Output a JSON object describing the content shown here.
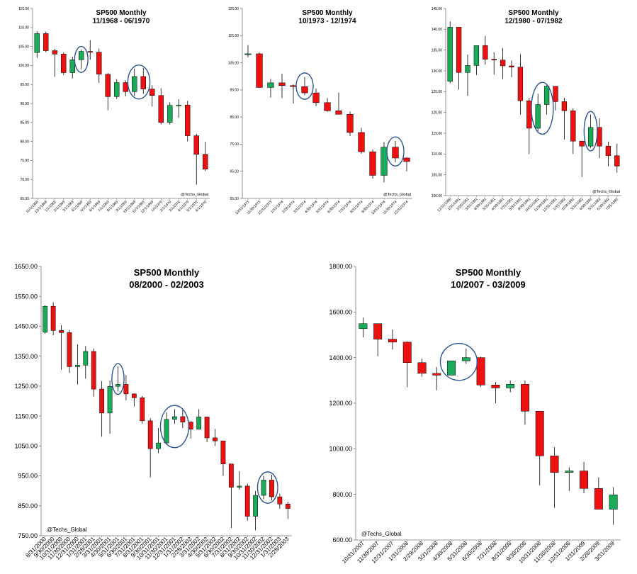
{
  "colors": {
    "up": "#1aab5a",
    "down": "#ee1111",
    "wick": "#000000",
    "circle": "#2f5597"
  },
  "chart_data": [
    {
      "type": "candlestick",
      "title": "SP500 Monthly",
      "subtitle": "11/1968 - 06/1970",
      "watermark": "@Techs_Global",
      "ylim": [
        65,
        115
      ],
      "yticks": [
        "115.00",
        "110.00",
        "105.00",
        "100.00",
        "95.00",
        "90.00",
        "85.00",
        "80.00",
        "75.00",
        "70.00",
        "65.00"
      ],
      "categories": [
        "11/1/1968",
        "12/1/1968",
        "1/1/1969",
        "2/1/1969",
        "3/1/1969",
        "4/1/1969",
        "5/1/1969",
        "6/1/1969",
        "7/1/1969",
        "8/1/1969",
        "9/1/1969",
        "10/1/1969",
        "11/1/1969",
        "12/1/1969",
        "1/1/1970",
        "2/1/1970",
        "3/1/1970",
        "4/1/1970",
        "5/1/1970",
        "6/1/1970"
      ],
      "ohlc": [
        [
          103.4,
          109.0,
          102.0,
          108.4
        ],
        [
          108.4,
          108.9,
          103.5,
          103.9
        ],
        [
          103.9,
          104.4,
          97.0,
          103.0
        ],
        [
          103.0,
          103.5,
          97.5,
          98.1
        ],
        [
          98.1,
          102.3,
          96.6,
          101.5
        ],
        [
          101.5,
          104.2,
          99.0,
          103.7
        ],
        [
          103.7,
          106.7,
          101.5,
          103.5
        ],
        [
          103.5,
          104.5,
          95.4,
          97.7
        ],
        [
          97.7,
          98.0,
          88.2,
          91.8
        ],
        [
          91.8,
          96.4,
          91.2,
          95.5
        ],
        [
          95.5,
          96.1,
          91.9,
          93.1
        ],
        [
          93.1,
          99.2,
          92.0,
          97.1
        ],
        [
          97.1,
          99.3,
          92.5,
          93.8
        ],
        [
          93.8,
          94.8,
          89.2,
          92.1
        ],
        [
          92.1,
          94.0,
          84.5,
          85.0
        ],
        [
          85.0,
          90.3,
          84.5,
          89.5
        ],
        [
          89.5,
          91.1,
          86.2,
          89.6
        ],
        [
          89.6,
          90.7,
          80.0,
          81.5
        ],
        [
          81.5,
          82.0,
          68.6,
          76.6
        ],
        [
          76.6,
          79.9,
          72.2,
          72.7
        ]
      ],
      "circles": [
        [
          5,
          5
        ],
        [
          11,
          12
        ]
      ]
    },
    {
      "type": "candlestick",
      "title": "SP500 Monthly",
      "subtitle": "10/1973 - 12/1974",
      "watermark": "@Techs_Global",
      "ylim": [
        55,
        125
      ],
      "yticks": [
        "125.00",
        "115.00",
        "105.00",
        "95.00",
        "85.00",
        "75.00",
        "65.00",
        "55.00"
      ],
      "categories": [
        "10/31/1973",
        "11/30/1973",
        "12/31/1973",
        "1/31/1974",
        "2/28/1974",
        "3/31/1974",
        "4/30/1974",
        "5/31/1974",
        "6/30/1974",
        "7/31/1974",
        "8/31/1974",
        "9/30/1974",
        "10/31/1974",
        "11/30/1974",
        "12/31/1974"
      ],
      "ohlc": [
        [
          108.3,
          111.5,
          107.0,
          108.3
        ],
        [
          108.3,
          108.8,
          95.7,
          95.9
        ],
        [
          95.9,
          99.0,
          92.2,
          97.6
        ],
        [
          97.6,
          101.0,
          92.0,
          96.6
        ],
        [
          96.6,
          97.0,
          90.0,
          96.2
        ],
        [
          96.2,
          99.8,
          93.0,
          93.9
        ],
        [
          93.9,
          95.5,
          89.0,
          90.3
        ],
        [
          90.3,
          92.0,
          86.9,
          87.3
        ],
        [
          87.3,
          94.0,
          86.0,
          86.0
        ],
        [
          86.0,
          87.0,
          78.0,
          79.3
        ],
        [
          79.3,
          81.0,
          71.5,
          72.2
        ],
        [
          72.2,
          73.0,
          62.3,
          63.5
        ],
        [
          63.5,
          75.8,
          60.9,
          73.9
        ],
        [
          73.9,
          76.2,
          68.4,
          69.9
        ],
        [
          69.9,
          70.2,
          65.0,
          68.6
        ]
      ],
      "circles": [
        [
          5,
          5
        ],
        [
          13,
          13
        ]
      ]
    },
    {
      "type": "candlestick",
      "title": "SP500 Monthly",
      "subtitle": "12/1980 - 07/1982",
      "watermark": "@Techs_Global",
      "ylim": [
        100,
        145
      ],
      "yticks": [
        "145.00",
        "140.00",
        "135.00",
        "130.00",
        "125.00",
        "120.00",
        "115.00",
        "110.00",
        "105.00",
        "100.00"
      ],
      "categories": [
        "12/31/1980",
        "1/31/1981",
        "2/28/1981",
        "3/31/1981",
        "4/30/1981",
        "5/31/1981",
        "6/30/1981",
        "7/31/1981",
        "8/31/1981",
        "9/30/1981",
        "10/31/1981",
        "11/30/1981",
        "12/31/1981",
        "1/31/1982",
        "2/28/1982",
        "3/31/1982",
        "4/30/1982",
        "5/31/1982",
        "6/30/1982",
        "7/31/1982"
      ],
      "ohlc": [
        [
          127.5,
          141.9,
          127.0,
          140.5
        ],
        [
          140.5,
          140.5,
          125.5,
          129.6
        ],
        [
          129.6,
          133.9,
          124.0,
          131.3
        ],
        [
          131.3,
          135.8,
          129.0,
          136.1
        ],
        [
          136.1,
          138.4,
          131.5,
          132.8
        ],
        [
          132.8,
          134.5,
          129.1,
          132.6
        ],
        [
          132.6,
          135.5,
          128.0,
          131.2
        ],
        [
          131.2,
          132.5,
          128.5,
          130.9
        ],
        [
          130.9,
          134.0,
          119.5,
          122.8
        ],
        [
          122.8,
          123.5,
          110.0,
          116.2
        ],
        [
          116.2,
          124.5,
          115.5,
          121.9
        ],
        [
          121.9,
          126.5,
          119.5,
          126.3
        ],
        [
          126.3,
          126.0,
          120.5,
          122.6
        ],
        [
          122.6,
          123.5,
          113.5,
          120.4
        ],
        [
          120.4,
          121.0,
          110.0,
          113.1
        ],
        [
          113.1,
          113.0,
          104.5,
          111.9
        ],
        [
          111.9,
          119.5,
          111.5,
          116.4
        ],
        [
          116.4,
          118.6,
          109.0,
          111.9
        ],
        [
          111.9,
          113.0,
          107.0,
          109.6
        ],
        [
          109.6,
          112.5,
          105.5,
          107.1
        ]
      ],
      "circles": [
        [
          10,
          11
        ],
        [
          16,
          16
        ]
      ]
    },
    {
      "type": "candlestick",
      "title": "SP500 Monthly",
      "subtitle": "08/2000 - 02/2003",
      "watermark": "@Techs_Global",
      "ylim": [
        750,
        1650
      ],
      "yticks": [
        "1650.00",
        "1550.00",
        "1450.00",
        "1350.00",
        "1250.00",
        "1150.00",
        "1050.00",
        "950.00",
        "850.00",
        "750.00"
      ],
      "categories": [
        "8/31/2000",
        "9/30/2000",
        "10/31/2000",
        "11/30/2000",
        "12/31/2000",
        "1/31/2001",
        "2/28/2001",
        "3/31/2001",
        "4/30/2001",
        "5/31/2001",
        "6/30/2001",
        "7/31/2001",
        "8/31/2001",
        "9/30/2001",
        "10/31/2001",
        "11/30/2001",
        "12/31/2001",
        "1/31/2002",
        "2/28/2002",
        "3/31/2002",
        "4/30/2002",
        "5/31/2002",
        "6/30/2002",
        "7/31/2002",
        "8/31/2002",
        "9/30/2002",
        "10/31/2002",
        "11/30/2002",
        "12/31/2002",
        "1/31/2003",
        "2/28/2003"
      ],
      "ohlc": [
        [
          1430,
          1520,
          1425,
          1517
        ],
        [
          1517,
          1530,
          1420,
          1436
        ],
        [
          1436,
          1454,
          1305,
          1429
        ],
        [
          1429,
          1438,
          1294,
          1315
        ],
        [
          1315,
          1390,
          1255,
          1320
        ],
        [
          1320,
          1384,
          1275,
          1366
        ],
        [
          1366,
          1376,
          1215,
          1240
        ],
        [
          1240,
          1267,
          1081,
          1160
        ],
        [
          1160,
          1269,
          1091,
          1249
        ],
        [
          1249,
          1316,
          1232,
          1256
        ],
        [
          1256,
          1287,
          1203,
          1224
        ],
        [
          1224,
          1226,
          1182,
          1211
        ],
        [
          1211,
          1217,
          1124,
          1134
        ],
        [
          1134,
          1143,
          945,
          1041
        ],
        [
          1041,
          1110,
          1026,
          1060
        ],
        [
          1060,
          1163,
          1054,
          1139
        ],
        [
          1139,
          1173,
          1124,
          1148
        ],
        [
          1148,
          1176,
          1110,
          1130
        ],
        [
          1130,
          1133,
          1075,
          1106
        ],
        [
          1106,
          1173,
          1108,
          1147
        ],
        [
          1147,
          1147,
          1063,
          1077
        ],
        [
          1077,
          1107,
          1050,
          1067
        ],
        [
          1067,
          1068,
          950,
          990
        ],
        [
          990,
          990,
          776,
          912
        ],
        [
          912,
          966,
          904,
          916
        ],
        [
          916,
          924,
          800,
          815
        ],
        [
          815,
          900,
          768,
          885
        ],
        [
          885,
          950,
          872,
          936
        ],
        [
          936,
          954,
          868,
          880
        ],
        [
          880,
          890,
          840,
          856
        ],
        [
          856,
          864,
          806,
          841
        ]
      ],
      "circles": [
        [
          9,
          9
        ],
        [
          15,
          17
        ],
        [
          27,
          28
        ]
      ]
    },
    {
      "type": "candlestick",
      "title": "SP500 Monthly",
      "subtitle": "10/2007 - 03/2009",
      "watermark": "@Techs_Global",
      "ylim": [
        600,
        1800
      ],
      "yticks": [
        "1800.00",
        "1600.00",
        "1400.00",
        "1200.00",
        "1000.00",
        "800.00",
        "600.00"
      ],
      "categories": [
        "10/31/2007",
        "11/30/2007",
        "12/31/2007",
        "1/31/2008",
        "2/29/2008",
        "3/31/2008",
        "4/30/2008",
        "5/31/2008",
        "6/30/2008",
        "7/31/2008",
        "8/31/2008",
        "9/30/2008",
        "10/31/2008",
        "11/30/2008",
        "12/31/2008",
        "1/31/2009",
        "2/28/2009",
        "3/31/2009"
      ],
      "ohlc": [
        [
          1527,
          1576,
          1489,
          1549
        ],
        [
          1549,
          1545,
          1406,
          1481
        ],
        [
          1481,
          1523,
          1435,
          1468
        ],
        [
          1468,
          1471,
          1270,
          1378
        ],
        [
          1378,
          1396,
          1316,
          1331
        ],
        [
          1331,
          1359,
          1257,
          1323
        ],
        [
          1323,
          1386,
          1323,
          1386
        ],
        [
          1386,
          1440,
          1373,
          1400
        ],
        [
          1400,
          1404,
          1272,
          1280
        ],
        [
          1280,
          1293,
          1200,
          1267
        ],
        [
          1267,
          1300,
          1248,
          1283
        ],
        [
          1283,
          1300,
          1106,
          1165
        ],
        [
          1165,
          1165,
          840,
          969
        ],
        [
          969,
          1007,
          741,
          896
        ],
        [
          896,
          919,
          815,
          903
        ],
        [
          903,
          943,
          805,
          826
        ],
        [
          826,
          875,
          735,
          735
        ],
        [
          735,
          832,
          667,
          798
        ]
      ],
      "circles": [
        [
          6,
          7
        ]
      ]
    }
  ]
}
